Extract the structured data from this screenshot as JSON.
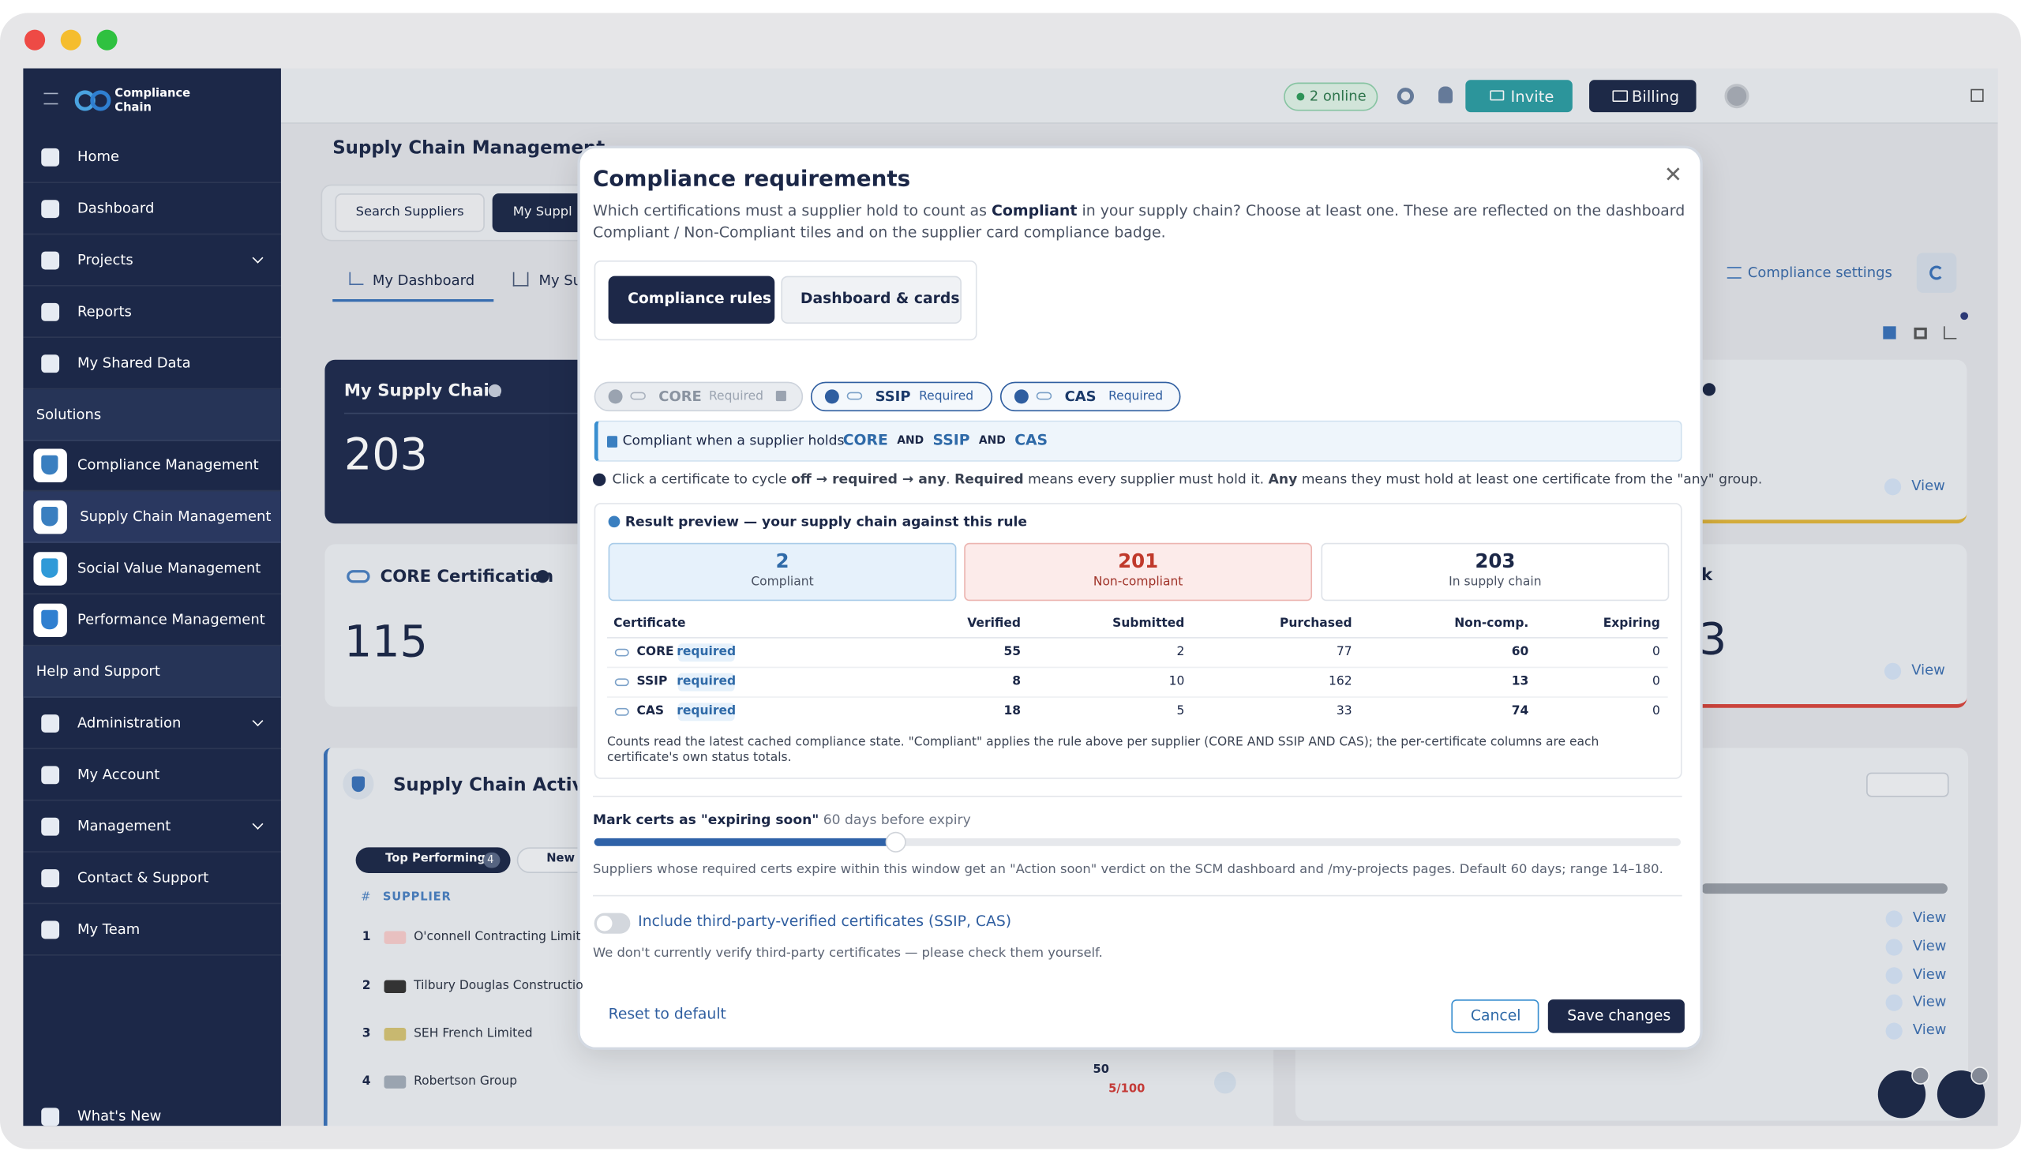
{
  "app": {
    "logo": [
      "Compliance",
      "Chain"
    ],
    "nav": [
      "Home",
      "Dashboard",
      "Projects",
      "Reports",
      "My Shared Data",
      "Solutions",
      "Compliance Management",
      "Supply Chain Management",
      "Social Value Management",
      "Performance Management",
      "Help and Support",
      "Administration",
      "My Account",
      "Management",
      "Contact & Support",
      "My Team",
      "What's New"
    ],
    "online": "2 online",
    "invite": "Invite",
    "billing": "Billing"
  },
  "page": {
    "title": "Supply Chain Management",
    "tabs": [
      "Search Suppliers",
      "My Suppl"
    ],
    "subtabs": [
      "My Dashboard",
      "My Su"
    ],
    "cards": [
      {
        "title": "My Supply Chain",
        "value": 203
      },
      {
        "title": "CORE Certification",
        "value": 115
      }
    ],
    "activity": {
      "title": "Supply Chain Activit",
      "filters": [
        {
          "label": "Top Performing",
          "count": 4
        },
        {
          "label": "New"
        }
      ],
      "columns": [
        "#",
        "SUPPLIER"
      ],
      "rows": [
        {
          "rank": 1,
          "name": "O'connell Contracting Limit"
        },
        {
          "rank": 2,
          "name": "Tilbury Douglas Constructio"
        },
        {
          "rank": 3,
          "name": "SEH French Limited"
        },
        {
          "rank": 4,
          "name": "Robertson Group"
        }
      ],
      "score": 50,
      "trend": "5/100"
    },
    "settings": "Compliance settings",
    "right": {
      "title": "k",
      "value": 3
    },
    "views": [
      "View",
      "View",
      "View",
      "View",
      "View",
      "View",
      "View"
    ]
  },
  "modal": {
    "title": "Compliance requirements",
    "description": [
      "Which certifications must a supplier hold to count as ",
      "Compliant",
      " in your supply chain? Choose at least one. These are reflected on the dashboard Compliant / Non-Compliant tiles and on the supplier card compliance badge."
    ],
    "tabs": [
      "Compliance rules",
      "Dashboard & cards"
    ],
    "chips": [
      {
        "name": "CORE",
        "status": "Required"
      },
      {
        "name": "SSIP",
        "status": "Required"
      },
      {
        "name": "CAS",
        "status": "Required"
      }
    ],
    "rule": {
      "prefix": "Compliant when a supplier holds",
      "terms": [
        "CORE",
        "AND",
        "SSIP",
        "AND",
        "CAS"
      ]
    },
    "hint": [
      "Click a certificate to cycle ",
      "off → required → any",
      ". ",
      "Required",
      " means every supplier must hold it. ",
      "Any",
      " means they must hold at least one certificate from the \"any\" group."
    ],
    "preview": {
      "title": "Result preview — your supply chain against this rule",
      "tiles": [
        {
          "value": 2,
          "label": "Compliant"
        },
        {
          "value": 201,
          "label": "Non-compliant"
        },
        {
          "value": 203,
          "label": "In supply chain"
        }
      ],
      "columns": [
        "Certificate",
        "Verified",
        "Submitted",
        "Purchased",
        "Non-comp.",
        "Expiring"
      ],
      "rows": [
        {
          "name": "CORE",
          "status": "required",
          "cells": [
            55,
            2,
            77,
            60,
            0
          ]
        },
        {
          "name": "SSIP",
          "status": "required",
          "cells": [
            8,
            10,
            162,
            13,
            0
          ]
        },
        {
          "name": "CAS",
          "status": "required",
          "cells": [
            18,
            5,
            33,
            74,
            0
          ]
        }
      ],
      "note": "Counts read the latest cached compliance state. \"Compliant\" applies the rule above per supplier (CORE AND SSIP AND CAS); the per-certificate columns are each certificate's own status totals."
    },
    "slider": {
      "label": "Mark certs as \"expiring soon\"",
      "value_text": "60 days before expiry",
      "value": 60,
      "min": 14,
      "max": 180,
      "help": "Suppliers whose required certs expire within this window get an \"Action soon\" verdict on the SCM dashboard and /my-projects pages. Default 60 days; range 14–180."
    },
    "toggle": {
      "label": "Include third-party-verified certificates (SSIP, CAS)",
      "note": "We don't currently verify third-party certificates — please check them yourself.",
      "on": false
    },
    "footer": {
      "reset": "Reset to default",
      "cancel": "Cancel",
      "save": "Save changes"
    }
  }
}
